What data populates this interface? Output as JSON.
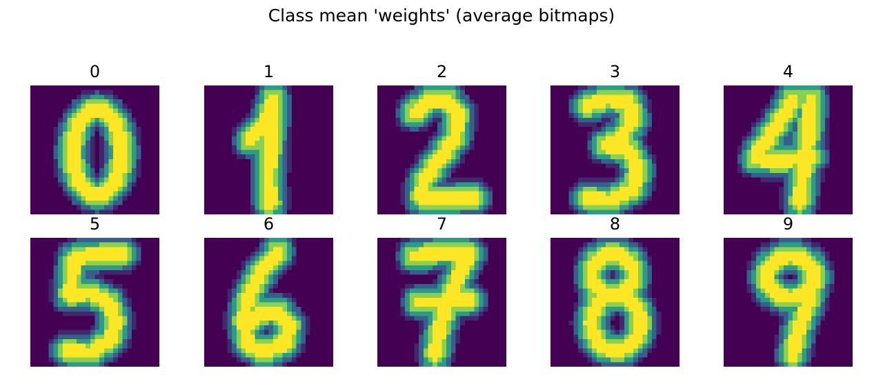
{
  "chart_data": {
    "type": "heatmap",
    "title": "Class mean 'weights' (average bitmaps)",
    "colormap": "viridis",
    "value_range": [
      0,
      1
    ],
    "grid_size": [
      28,
      28
    ],
    "axes_visible": false,
    "layout": "2 rows x 5 columns",
    "panels": [
      {
        "label": "0",
        "digit": "0"
      },
      {
        "label": "1",
        "digit": "1"
      },
      {
        "label": "2",
        "digit": "2"
      },
      {
        "label": "3",
        "digit": "3"
      },
      {
        "label": "4",
        "digit": "4"
      },
      {
        "label": "5",
        "digit": "5"
      },
      {
        "label": "6",
        "digit": "6"
      },
      {
        "label": "7",
        "digit": "7"
      },
      {
        "label": "8",
        "digit": "8"
      },
      {
        "label": "9",
        "digit": "9"
      }
    ]
  },
  "colors": {
    "background_low": "#440154",
    "mid_low": "#31688e",
    "mid": "#35b779",
    "high": "#fde725"
  }
}
